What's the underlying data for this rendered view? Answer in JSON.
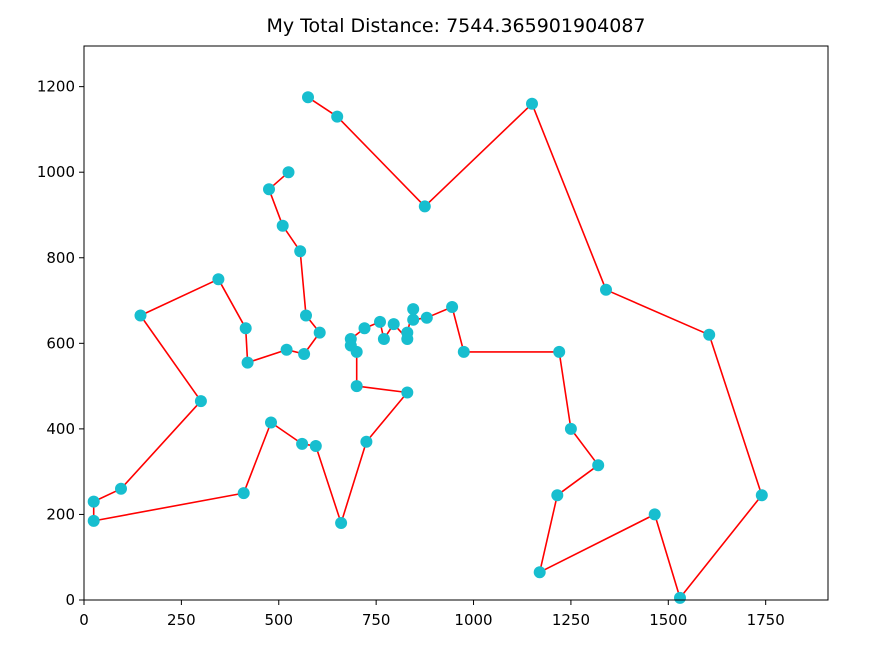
{
  "chart_data": {
    "type": "line",
    "title": "My Total Distance: 7544.365901904087",
    "xlabel": "",
    "ylabel": "",
    "xlim": [
      0,
      1910
    ],
    "ylim": [
      0,
      1295
    ],
    "xticks": [
      0,
      250,
      500,
      750,
      1000,
      1250,
      1500,
      1750
    ],
    "yticks": [
      0,
      200,
      400,
      600,
      800,
      1000,
      1200
    ],
    "grid": false,
    "colors": {
      "line": "#ff0000",
      "marker": "#17becf"
    },
    "series": [
      {
        "x": [
          575,
          650,
          875,
          1150,
          1340,
          1605,
          1740,
          1530,
          1465,
          1170,
          1215,
          1320,
          1250,
          1220,
          975,
          945,
          880,
          845,
          845,
          830,
          830,
          795,
          770,
          760,
          720,
          685,
          685,
          700,
          700,
          830,
          725,
          660,
          595,
          560,
          480,
          410,
          25,
          25,
          95,
          300,
          145,
          345,
          415,
          420,
          520,
          565,
          605,
          570,
          555,
          510,
          475,
          525
        ],
        "y": [
          1175,
          1130,
          920,
          1160,
          725,
          620,
          245,
          5,
          200,
          65,
          245,
          315,
          400,
          580,
          580,
          685,
          660,
          655,
          680,
          625,
          610,
          645,
          610,
          650,
          635,
          610,
          595,
          580,
          500,
          485,
          370,
          180,
          360,
          365,
          415,
          250,
          185,
          230,
          260,
          465,
          665,
          750,
          635,
          555,
          585,
          575,
          625,
          665,
          815,
          875,
          960,
          1000
        ]
      }
    ]
  }
}
